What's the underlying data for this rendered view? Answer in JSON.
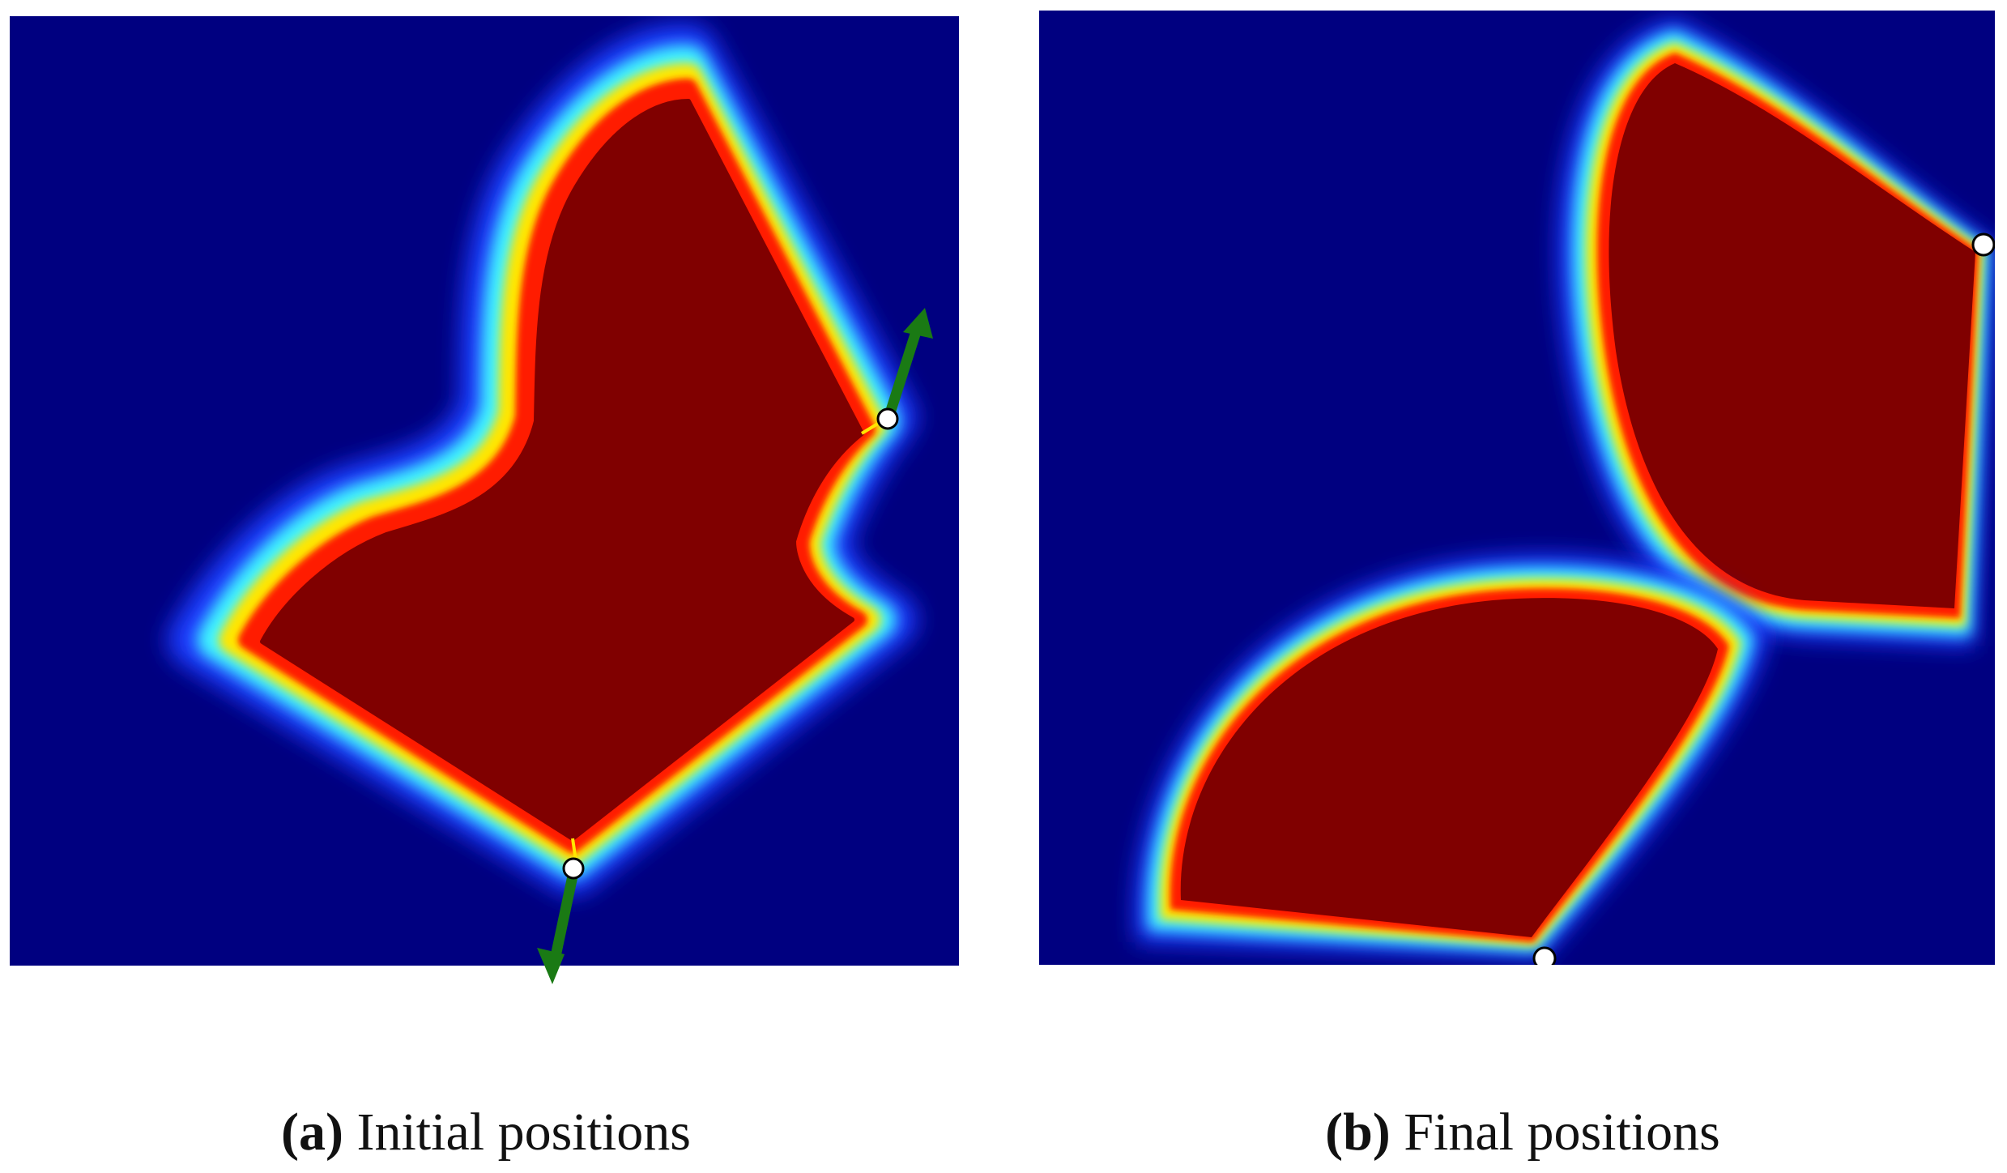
{
  "colors": {
    "background_field": "#000080",
    "glow_outer": "#1a3cff",
    "glow_cyan": "#3ff5ff",
    "glow_yellow": "#ffe600",
    "glow_red": "#ff1a00",
    "core": "#800000",
    "marker_fill": "#ffffff",
    "marker_stroke": "#000000",
    "arrow": "#1a7a14"
  },
  "panels": [
    {
      "id": "a",
      "caption_letter": "(a)",
      "caption_text": "Initial positions",
      "markers": 2,
      "arrows": 2
    },
    {
      "id": "b",
      "caption_letter": "(b)",
      "caption_text": "Final positions",
      "markers": 2,
      "arrows": 0
    }
  ]
}
